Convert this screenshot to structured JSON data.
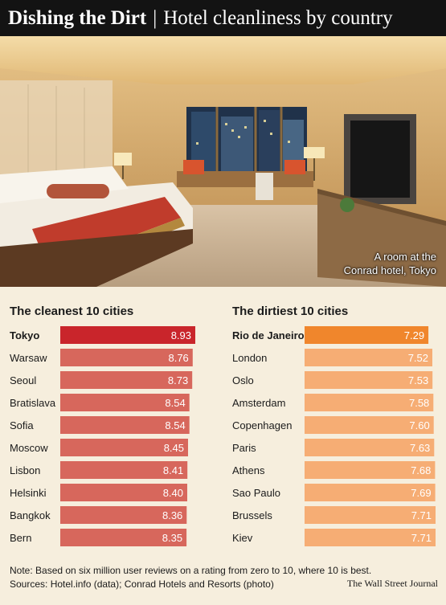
{
  "header": {
    "title_bold": "Dishing the Dirt",
    "separator": "|",
    "title_rest": "Hotel cleanliness by country"
  },
  "photo": {
    "caption_line1": "A room at the",
    "caption_line2": "Conrad hotel, Tokyo"
  },
  "chart_data": [
    {
      "type": "bar",
      "title": "The cleanest 10 cities",
      "categories": [
        "Tokyo",
        "Warsaw",
        "Seoul",
        "Bratislava",
        "Sofia",
        "Moscow",
        "Lisbon",
        "Helsinki",
        "Bangkok",
        "Bern"
      ],
      "values": [
        8.93,
        8.76,
        8.73,
        8.54,
        8.54,
        8.45,
        8.41,
        8.4,
        8.36,
        8.35
      ],
      "value_labels": [
        "8.93",
        "8.76",
        "8.73",
        "8.54",
        "8.54",
        "8.45",
        "8.41",
        "8.40",
        "8.36",
        "8.35"
      ],
      "highlight_color": "#c9252b",
      "bar_color": "#d7675c"
    },
    {
      "type": "bar",
      "title": "The dirtiest 10 cities",
      "categories": [
        "Rio de Janeiro",
        "London",
        "Oslo",
        "Amsterdam",
        "Copenhagen",
        "Paris",
        "Athens",
        "Sao Paulo",
        "Brussels",
        "Kiev"
      ],
      "values": [
        7.29,
        7.52,
        7.53,
        7.58,
        7.6,
        7.63,
        7.68,
        7.69,
        7.71,
        7.71
      ],
      "value_labels": [
        "7.29",
        "7.52",
        "7.53",
        "7.58",
        "7.60",
        "7.63",
        "7.68",
        "7.69",
        "7.71",
        "7.71"
      ],
      "highlight_color": "#f0862c",
      "bar_color": "#f6ad74"
    }
  ],
  "footer": {
    "note": "Note: Based on six million user reviews on a rating from zero to 10, where 10 is best.",
    "sources": "Sources: Hotel.info (data); Conrad Hotels and Resorts (photo)",
    "credit": "The Wall Street Journal"
  }
}
